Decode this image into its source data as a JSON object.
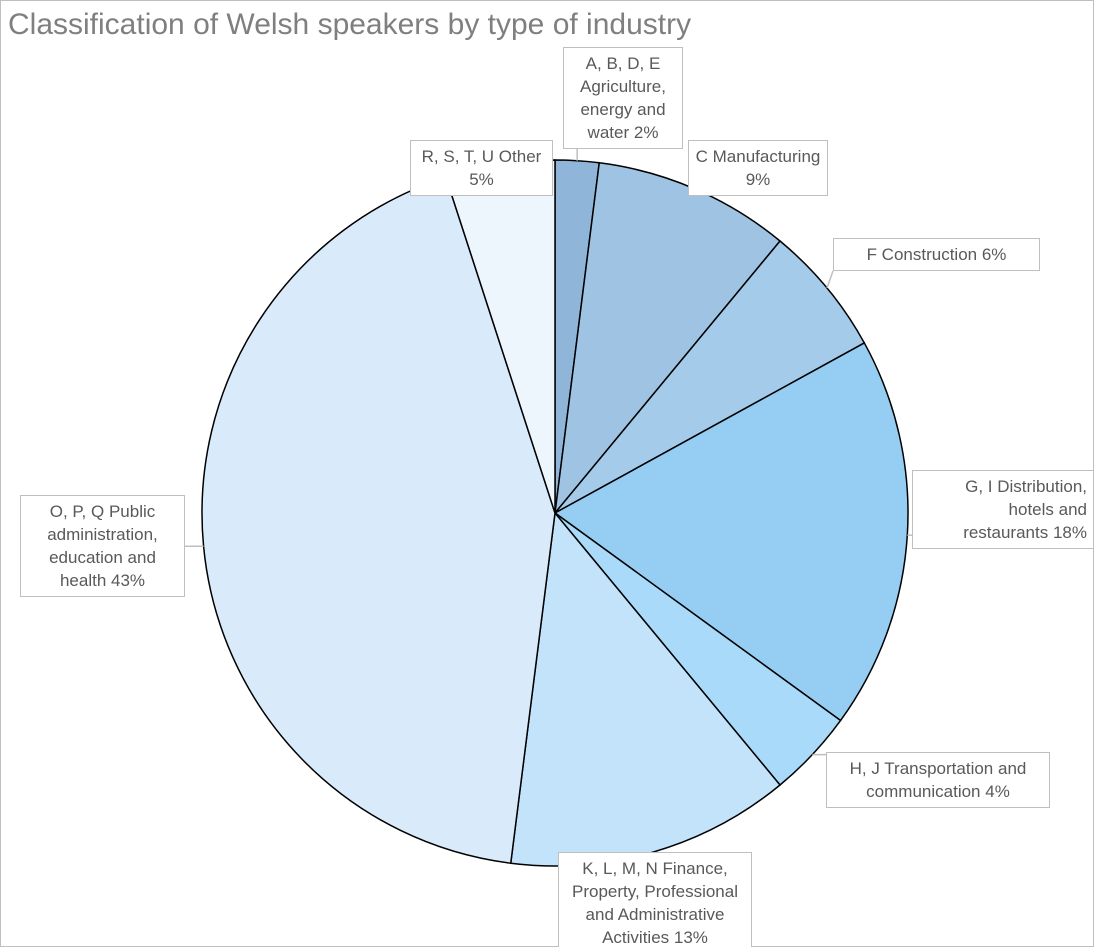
{
  "chart_data": {
    "type": "pie",
    "title": "Classification of Welsh speakers by type of industry",
    "categories": [
      "A, B, D, E Agriculture, energy and water",
      "C Manufacturing",
      "F Construction",
      "G, I Distribution, hotels and restaurants",
      "H, J Transportation and communication",
      "K, L, M, N Finance, Property, Professional and Administrative Activities",
      "O, P, Q Public administration, education and health",
      "R, S, T, U Other"
    ],
    "values": [
      2,
      9,
      6,
      18,
      4,
      13,
      43,
      5
    ],
    "value_labels": [
      "2%",
      "9%",
      "6%",
      "18%",
      "4%",
      "13%",
      "43%",
      "5%"
    ],
    "colors": [
      "#8fb6d9",
      "#9fc4e3",
      "#a4cbea",
      "#96cdf2",
      "#a9dafa",
      "#c3e3fb",
      "#d9ebfb",
      "#eef6fd"
    ]
  }
}
